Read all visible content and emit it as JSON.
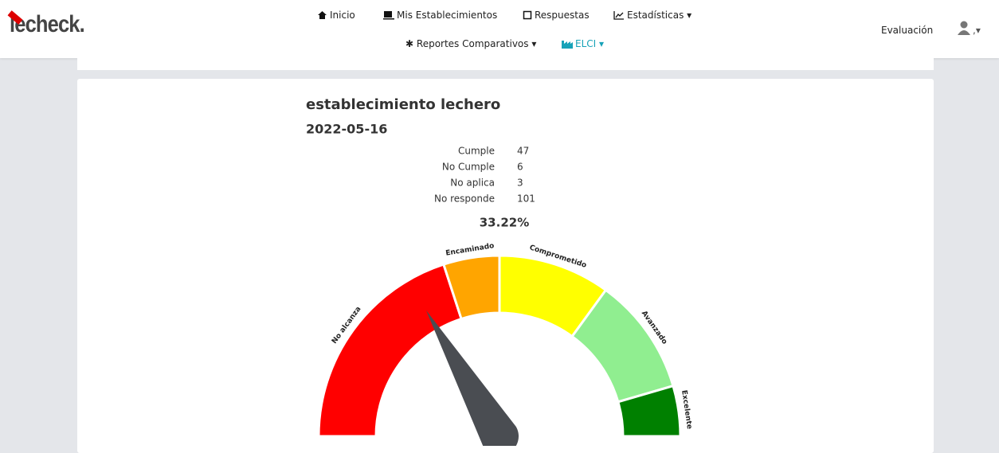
{
  "logo": "lecheck.",
  "nav": {
    "items": [
      "Inicio",
      "Mis Establecimientos",
      "Respuestas",
      "Estadísticas",
      "Reportes Comparativos",
      "ELCI"
    ],
    "right": "Evaluación",
    "user": ","
  },
  "report": {
    "title": "establecimiento lechero",
    "date": "2022-05-16",
    "stats": [
      {
        "label": "Cumple",
        "value": 47
      },
      {
        "label": "No Cumple",
        "value": 6
      },
      {
        "label": "No aplica",
        "value": 3
      },
      {
        "label": "No responde",
        "value": 101
      }
    ],
    "percentage": {
      "value": 33.22,
      "label": "33.22%"
    }
  },
  "chart_data": {
    "type": "gauge",
    "range": [
      0,
      100
    ],
    "value": 33.22,
    "bands": [
      {
        "name": "No alcanza",
        "to": 40,
        "color": "#ff0000"
      },
      {
        "name": "Encaminado",
        "to": 50,
        "color": "#ffa500"
      },
      {
        "name": "Comprometido",
        "to": 70,
        "color": "#ffff00"
      },
      {
        "name": "Avanzado",
        "to": 91,
        "color": "#90ee90"
      },
      {
        "name": "Excelente",
        "to": 100,
        "color": "#008000"
      }
    ],
    "needle_color": "#4a4d52"
  }
}
